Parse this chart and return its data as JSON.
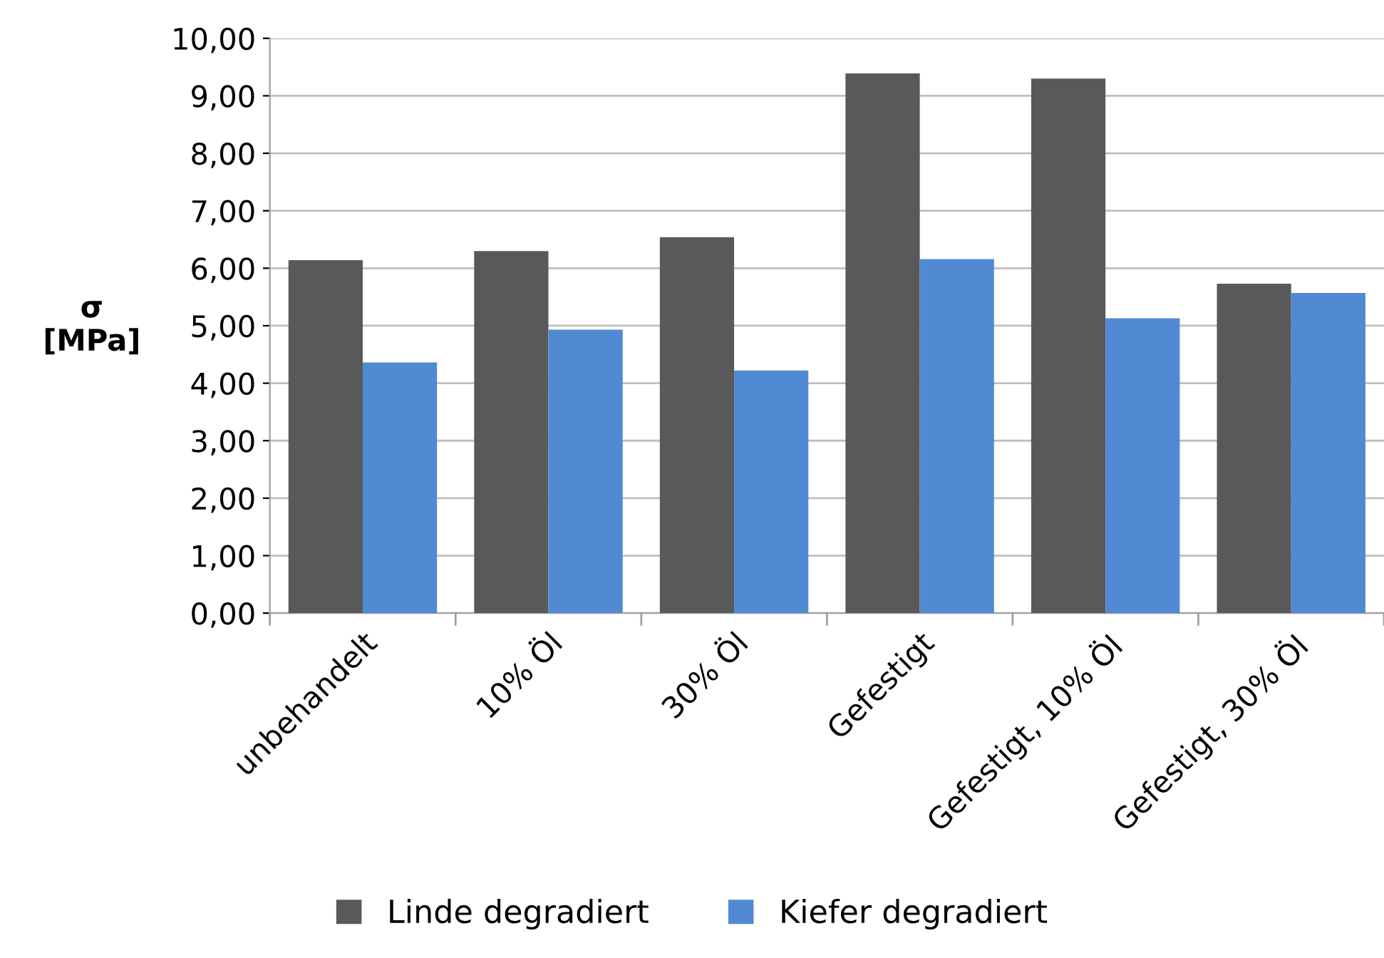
{
  "chart_data": {
    "type": "bar",
    "ylabel": "σ\n[MPa]",
    "categories": [
      "unbehandelt",
      "10% Öl",
      "30% Öl",
      "Gefestigt",
      "Gefestigt, 10% Öl",
      "Gefestigt, 30% Öl"
    ],
    "series": [
      {
        "name": "Linde degradiert",
        "color": "#595959",
        "values": [
          6.14,
          6.3,
          6.54,
          9.39,
          9.3,
          5.73
        ]
      },
      {
        "name": "Kiefer degradiert",
        "color": "#518ad3",
        "values": [
          4.36,
          4.93,
          4.22,
          6.16,
          5.13,
          5.57
        ]
      }
    ],
    "ylim": [
      0,
      10
    ],
    "yticks": [
      {
        "value": 0,
        "label": "0,00"
      },
      {
        "value": 1,
        "label": "1,00"
      },
      {
        "value": 2,
        "label": "2,00"
      },
      {
        "value": 3,
        "label": "3,00"
      },
      {
        "value": 4,
        "label": "4,00"
      },
      {
        "value": 5,
        "label": "5,00"
      },
      {
        "value": 6,
        "label": "6,00"
      },
      {
        "value": 7,
        "label": "7,00"
      },
      {
        "value": 8,
        "label": "8,00"
      },
      {
        "value": 9,
        "label": "9,00"
      },
      {
        "value": 10,
        "label": "10,00"
      }
    ],
    "grid": "y",
    "legend": "bottom"
  }
}
